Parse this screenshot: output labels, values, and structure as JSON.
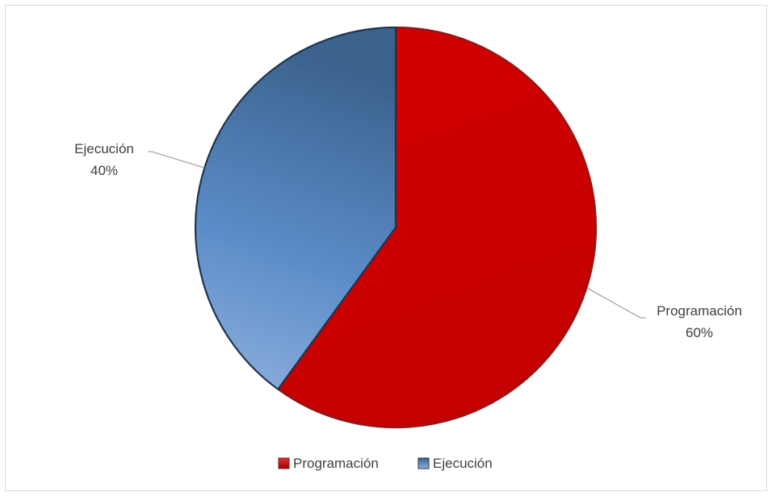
{
  "chart_data": {
    "type": "pie",
    "title": "",
    "legend_position": "bottom",
    "slices": [
      {
        "name": "Programación",
        "value": 60,
        "label": "60%",
        "color": "#c00000"
      },
      {
        "name": "Ejecución",
        "value": 40,
        "label": "40%",
        "color": "#4f81bd"
      }
    ]
  }
}
